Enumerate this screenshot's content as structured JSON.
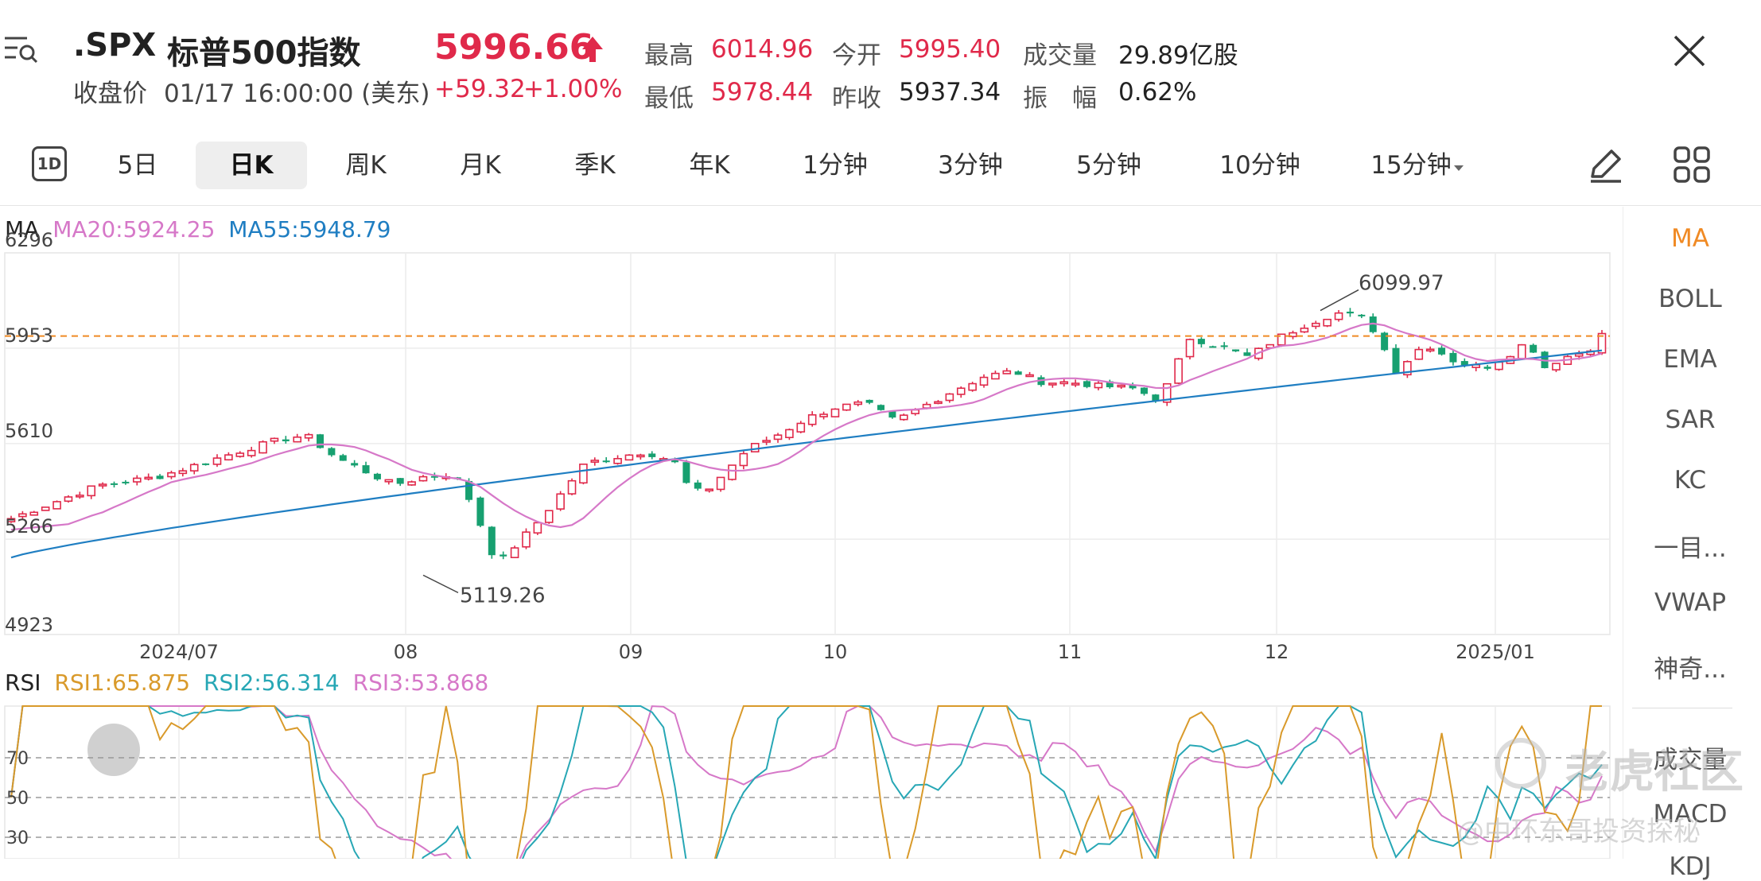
{
  "header": {
    "symbol": ".SPX",
    "name": "标普500指数",
    "price": "5996.66",
    "change": "+59.32",
    "change_pct": "+1.00%",
    "close_label": "收盘价",
    "close_time": "01/17 16:00:00 (美东)",
    "stats": [
      {
        "label": "最高",
        "value": "6014.96",
        "color": "red"
      },
      {
        "label": "今开",
        "value": "5995.40",
        "color": "red"
      },
      {
        "label": "成交量",
        "value": "29.89亿股",
        "color": "dark"
      },
      {
        "label": "最低",
        "value": "5978.44",
        "color": "red"
      },
      {
        "label": "昨收",
        "value": "5937.34",
        "color": "dark"
      },
      {
        "label": "振　幅",
        "value": "0.62%",
        "color": "dark"
      }
    ]
  },
  "tabs": {
    "icon_1d": "1D",
    "items": [
      "5日",
      "日K",
      "周K",
      "月K",
      "季K",
      "年K",
      "1分钟",
      "3分钟",
      "5分钟",
      "10分钟",
      "15分钟"
    ],
    "active": "日K"
  },
  "sidebar": {
    "items": [
      "MA",
      "BOLL",
      "EMA",
      "SAR",
      "KC",
      "一目...",
      "VWAP",
      "神奇...",
      "成交量",
      "MACD",
      "KDJ"
    ],
    "active": "MA"
  },
  "ma_legend": {
    "title": "MA",
    "ma20": "MA20:5924.25",
    "ma55": "MA55:5948.79"
  },
  "rsi_legend": {
    "title": "RSI",
    "rsi1": "RSI1:65.875",
    "rsi2": "RSI2:56.314",
    "rsi3": "RSI3:53.868"
  },
  "watermark": {
    "logo": "老虎社区",
    "credit": "@中环东哥投资探秘"
  },
  "colors": {
    "up": "#e0294a",
    "down": "#17a070",
    "ma20": "#d678c8",
    "ma55": "#1f7ec2",
    "rsi1": "#d99a2b",
    "rsi2": "#27a7b5",
    "rsi3": "#d678c8",
    "accent": "#f08a24"
  },
  "chart_data": [
    {
      "type": "candlestick",
      "y_ticks": [
        "6296",
        "5953",
        "5610",
        "5266",
        "4923"
      ],
      "ylim": [
        4923,
        6296
      ],
      "x_ticks": [
        "2024/07",
        "08",
        "09",
        "10",
        "11",
        "12",
        "2025/01"
      ],
      "annotations": {
        "high": "6099.97",
        "low": "5119.26"
      },
      "current_price": 5996.66,
      "ma20_last": 5924.25,
      "ma55_last": 5948.79
    },
    {
      "type": "line",
      "y_ticks": [
        "70",
        "50",
        "30"
      ],
      "series": [
        {
          "name": "RSI1",
          "last": 65.875
        },
        {
          "name": "RSI2",
          "last": 56.314
        },
        {
          "name": "RSI3",
          "last": 53.868
        }
      ]
    }
  ]
}
